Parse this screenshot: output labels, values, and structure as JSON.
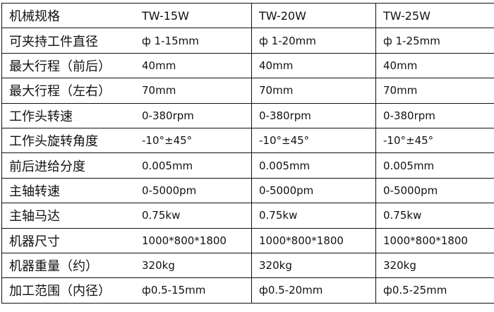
{
  "table": {
    "header": [
      "机械规格",
      "TW-15W",
      "TW-20W",
      "TW-25W"
    ],
    "rows": [
      [
        "可夹持工件直径",
        "ф 1-15mm",
        "ф 1-20mm",
        "ф 1-25mm"
      ],
      [
        "最大行程（前后）",
        "40mm",
        "40mm",
        "40mm"
      ],
      [
        "最大行程（左右）",
        "70mm",
        "70mm",
        "70mm"
      ],
      [
        "工作头转速",
        "0-380rpm",
        "0-380rpm",
        "0-380rpm"
      ],
      [
        "工作头旋转角度",
        "-10°±45°",
        "-10°±45°",
        "-10°±45°"
      ],
      [
        "前后进给分度",
        "0.005mm",
        "0.005mm",
        "0.005mm"
      ],
      [
        "主轴转速",
        "0-5000pm",
        "0-5000pm",
        "0-5000pm"
      ],
      [
        "主轴马达",
        "0.75kw",
        "0.75kw",
        "0.75kw"
      ],
      [
        "机器尺寸",
        "1000*800*1800",
        "1000*800*1800",
        "1000*800*1800"
      ],
      [
        "机器重量（约）",
        "320kg",
        "320kg",
        "320kg"
      ],
      [
        "加工范围（内径）",
        "ф0.5-15mm",
        "ф0.5-20mm",
        "ф0.5-25mm"
      ]
    ]
  }
}
